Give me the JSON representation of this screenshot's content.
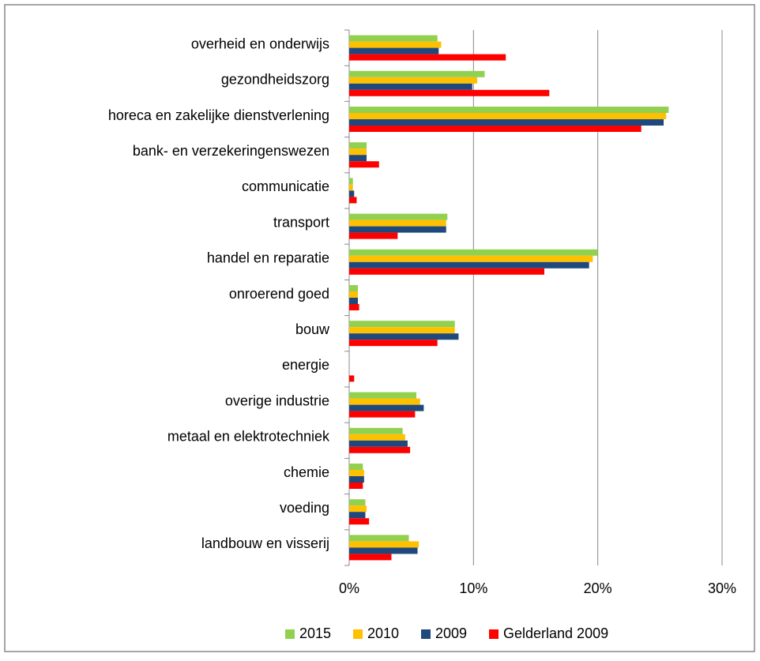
{
  "chart_data": {
    "type": "barh",
    "categories": [
      "overheid en onderwijs",
      "gezondheidszorg",
      "horeca en zakelijke dienstverlening",
      "bank- en verzekeringenswezen",
      "communicatie",
      "transport",
      "handel en reparatie",
      "onroerend goed",
      "bouw",
      "energie",
      "overige industrie",
      "metaal en elektrotechniek",
      "chemie",
      "voeding",
      "landbouw en visserij"
    ],
    "series": [
      {
        "name": "2015",
        "color": "#92d050",
        "values": [
          7.1,
          10.9,
          25.7,
          1.4,
          0.3,
          7.9,
          20.0,
          0.7,
          8.5,
          0,
          5.4,
          4.3,
          1.1,
          1.3,
          4.8
        ]
      },
      {
        "name": "2010",
        "color": "#ffc000",
        "values": [
          7.4,
          10.3,
          25.5,
          1.4,
          0.3,
          7.8,
          19.6,
          0.7,
          8.5,
          0,
          5.7,
          4.5,
          1.2,
          1.4,
          5.6
        ]
      },
      {
        "name": "2009",
        "color": "#1f497d",
        "values": [
          7.2,
          9.9,
          25.3,
          1.4,
          0.4,
          7.8,
          19.3,
          0.7,
          8.8,
          0,
          6.0,
          4.7,
          1.2,
          1.3,
          5.5
        ]
      },
      {
        "name": "Gelderland 2009",
        "color": "#ff0000",
        "values": [
          12.6,
          16.1,
          23.5,
          2.4,
          0.6,
          3.9,
          15.7,
          0.8,
          7.1,
          0.4,
          5.3,
          4.9,
          1.1,
          1.6,
          3.4
        ]
      }
    ],
    "xlim": [
      0,
      30
    ],
    "xticks": [
      {
        "value": 0,
        "label": "0%"
      },
      {
        "value": 10,
        "label": "10%"
      },
      {
        "value": 20,
        "label": "20%"
      },
      {
        "value": 30,
        "label": "30%"
      }
    ],
    "grid": true,
    "legend": "bottom"
  }
}
